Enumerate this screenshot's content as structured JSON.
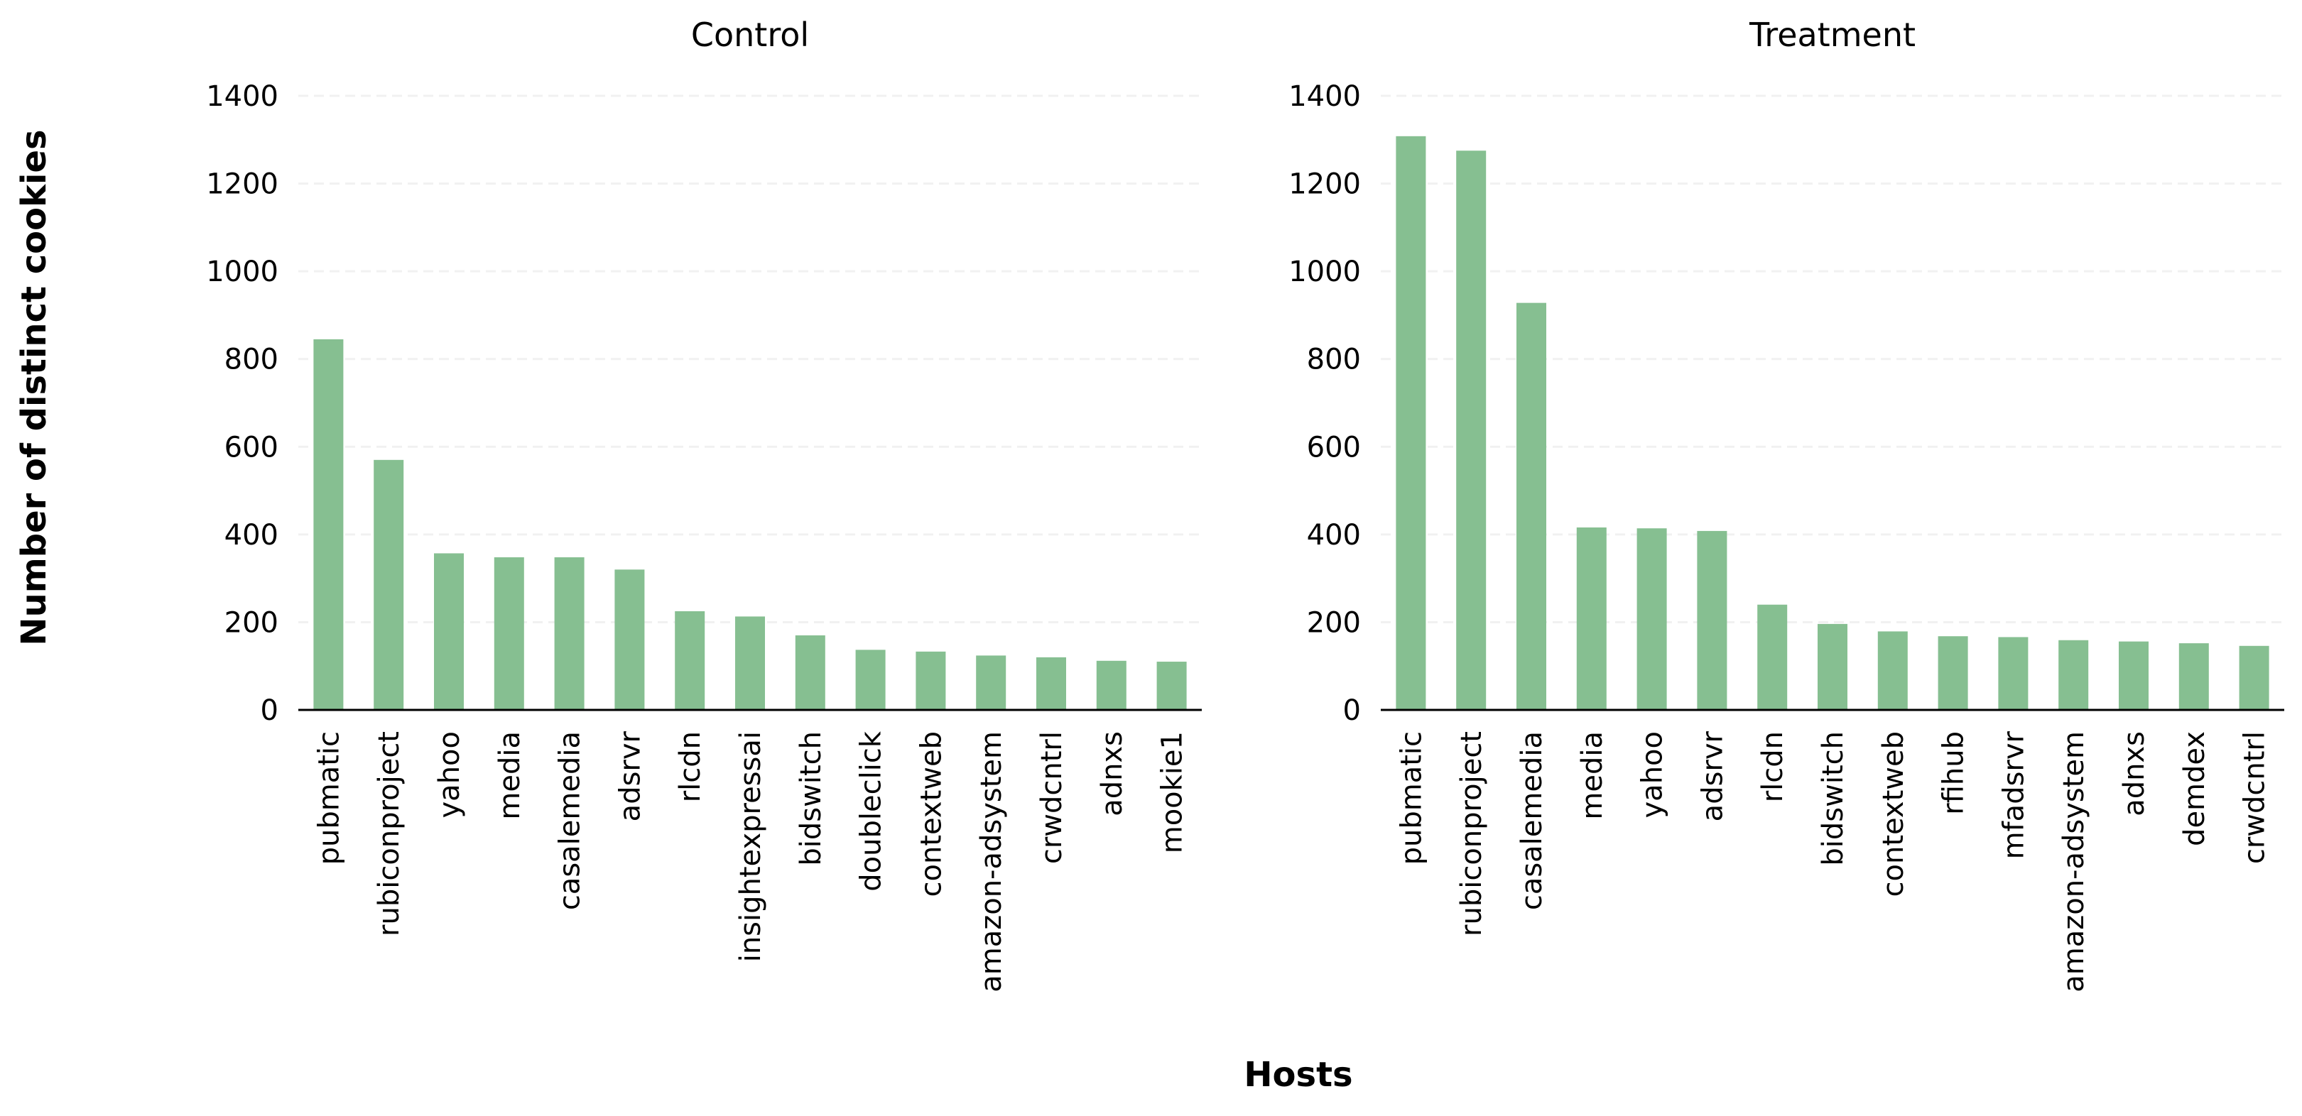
{
  "figure": {
    "ylabel": "Number of distinct cookies",
    "xlabel": "Hosts",
    "bar_color": "#86bf91"
  },
  "chart_data": [
    {
      "type": "bar",
      "title": "Control",
      "xlabel": "",
      "ylabel": "",
      "ylim": [
        0,
        1400
      ],
      "yticks": [
        0,
        200,
        400,
        600,
        800,
        1000,
        1200,
        1400
      ],
      "grid": "horizontal dashed",
      "categories": [
        "pubmatic",
        "rubiconproject",
        "yahoo",
        "media",
        "casalemedia",
        "adsrvr",
        "rlcdn",
        "insightexpressai",
        "bidswitch",
        "doubleclick",
        "contextweb",
        "amazon-adsystem",
        "crwdcntrl",
        "adnxs",
        "mookie1"
      ],
      "values": [
        845,
        570,
        357,
        348,
        348,
        320,
        225,
        213,
        170,
        137,
        133,
        124,
        120,
        112,
        110
      ]
    },
    {
      "type": "bar",
      "title": "Treatment",
      "xlabel": "",
      "ylabel": "",
      "ylim": [
        0,
        1400
      ],
      "yticks": [
        0,
        200,
        400,
        600,
        800,
        1000,
        1200,
        1400
      ],
      "grid": "horizontal dashed",
      "categories": [
        "pubmatic",
        "rubiconproject",
        "casalemedia",
        "media",
        "yahoo",
        "adsrvr",
        "rlcdn",
        "bidswitch",
        "contextweb",
        "rfihub",
        "mfadsrvr",
        "amazon-adsystem",
        "adnxs",
        "demdex",
        "crwdcntrl"
      ],
      "values": [
        1308,
        1275,
        928,
        416,
        414,
        408,
        240,
        196,
        179,
        168,
        166,
        159,
        156,
        152,
        146
      ]
    }
  ]
}
